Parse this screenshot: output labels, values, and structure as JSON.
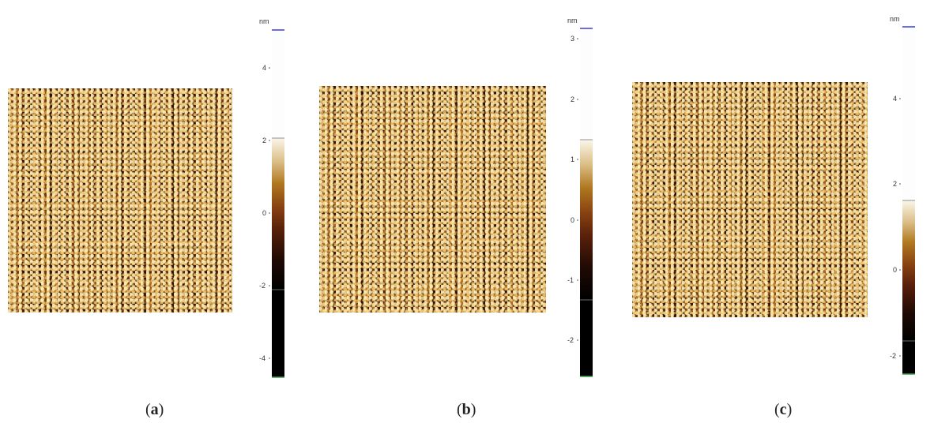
{
  "panels": [
    {
      "id": "a",
      "caption_open": "(",
      "caption_letter": "a",
      "caption_close": ")",
      "unit": "nm",
      "ticks": [
        "4",
        "2",
        "0",
        "-2",
        "-4"
      ]
    },
    {
      "id": "b",
      "caption_open": "(",
      "caption_letter": "b",
      "caption_close": ")",
      "unit": "nm",
      "ticks": [
        "3",
        "2",
        "1",
        "0",
        "-1",
        "-2"
      ]
    },
    {
      "id": "c",
      "caption_open": "(",
      "caption_letter": "c",
      "caption_close": ")",
      "unit": "nm",
      "ticks": [
        "4",
        "2",
        "0",
        "-2"
      ]
    }
  ],
  "colors": {
    "colormap": [
      "#000000",
      "#1f0a04",
      "#4a1808",
      "#7a3a14",
      "#a35f15",
      "#c38a2e",
      "#e8d29c",
      "#fbf6ea"
    ],
    "unit_marker": "#3b3bdc",
    "bottom_marker": "#3aa34a"
  }
}
